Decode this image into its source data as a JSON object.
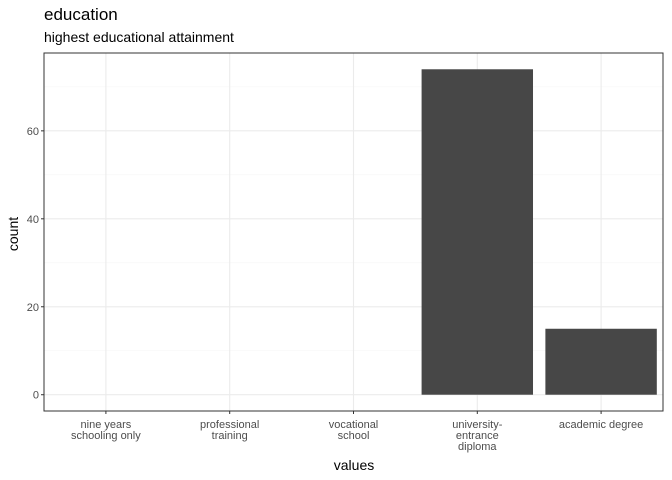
{
  "chart_data": {
    "type": "bar",
    "title": "education",
    "subtitle": "highest educational attainment",
    "xlabel": "values",
    "ylabel": "count",
    "categories": [
      [
        "nine years",
        "schooling only"
      ],
      [
        "professional",
        "training"
      ],
      [
        "vocational",
        "school"
      ],
      [
        "university-",
        "entrance",
        "diploma"
      ],
      [
        "academic degree"
      ]
    ],
    "values": [
      0,
      0,
      0,
      74,
      15
    ],
    "ylim": [
      -3.7,
      77.7
    ],
    "yticks": [
      0,
      20,
      40,
      60
    ],
    "grid": true,
    "legend": "none",
    "colors": {
      "bar": "#474747",
      "grid_major": "#ebebeb",
      "grid_minor": "#f5f5f5",
      "panel_border": "#333333",
      "tick_text": "#4d4d4d"
    }
  }
}
